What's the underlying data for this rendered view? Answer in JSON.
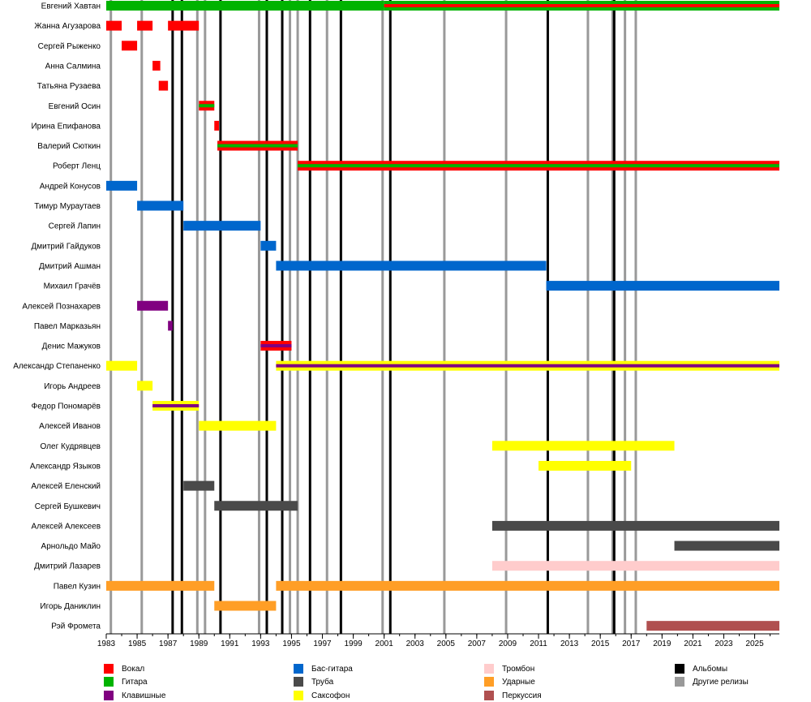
{
  "chart_data": {
    "type": "timeline",
    "title": "",
    "x_range": [
      1983,
      2026.6
    ],
    "ticks": [
      1983,
      1985,
      1987,
      1989,
      1991,
      1993,
      1995,
      1997,
      1999,
      2001,
      2003,
      2005,
      2007,
      2009,
      2011,
      2013,
      2015,
      2017,
      2019,
      2021,
      2023,
      2025
    ],
    "album_lines": [
      1987.3,
      1987.9,
      1990.4,
      1993.4,
      1994.4,
      1996.2,
      1998.2,
      2001.4,
      2011.6,
      2015.9
    ],
    "other_release_lines": [
      1983.3,
      1985.3,
      1988.9,
      1989.4,
      1992.9,
      1994.9,
      1995.4,
      1997.3,
      2000.9,
      2004.9,
      2008.9,
      2014.2,
      2015.8,
      2016.6,
      2017.3
    ],
    "legend": [
      {
        "key": "vocal",
        "label": "Вокал",
        "color": "#ff0000"
      },
      {
        "key": "guitar",
        "label": "Гитара",
        "color": "#00b300"
      },
      {
        "key": "keys",
        "label": "Клавишные",
        "color": "#800080"
      },
      {
        "key": "bass",
        "label": "Бас-гитара",
        "color": "#0066cc"
      },
      {
        "key": "trumpet",
        "label": "Труба",
        "color": "#4a4a4a"
      },
      {
        "key": "sax",
        "label": "Саксофон",
        "color": "#ffff00"
      },
      {
        "key": "trombone",
        "label": "Тромбон",
        "color": "#ffcccc"
      },
      {
        "key": "drums",
        "label": "Ударные",
        "color": "#ff9e26"
      },
      {
        "key": "percussion",
        "label": "Перкуссия",
        "color": "#b05050"
      },
      {
        "key": "albums",
        "label": "Альбомы",
        "color": "#000000"
      },
      {
        "key": "other",
        "label": "Другие релизы",
        "color": "#999999"
      }
    ],
    "members": [
      {
        "name": "Евгений Хавтан",
        "bars": [
          {
            "start": 1983,
            "end": 2001,
            "colors": [
              "guitar"
            ]
          },
          {
            "start": 2001,
            "end": 2026.6,
            "colors": [
              "guitar",
              "vocal"
            ]
          }
        ]
      },
      {
        "name": "Жанна Агузарова",
        "bars": [
          {
            "start": 1983,
            "end": 1984,
            "colors": [
              "vocal"
            ]
          },
          {
            "start": 1985,
            "end": 1986,
            "colors": [
              "vocal"
            ]
          },
          {
            "start": 1987,
            "end": 1989,
            "colors": [
              "vocal"
            ]
          }
        ]
      },
      {
        "name": "Сергей Рыженко",
        "bars": [
          {
            "start": 1984,
            "end": 1985,
            "colors": [
              "vocal"
            ]
          }
        ]
      },
      {
        "name": "Анна Салмина",
        "bars": [
          {
            "start": 1986,
            "end": 1986.5,
            "colors": [
              "vocal"
            ]
          }
        ]
      },
      {
        "name": "Татьяна Рузаева",
        "bars": [
          {
            "start": 1986.4,
            "end": 1987,
            "colors": [
              "vocal"
            ]
          }
        ]
      },
      {
        "name": "Евгений Осин",
        "bars": [
          {
            "start": 1989,
            "end": 1990,
            "colors": [
              "vocal",
              "guitar"
            ]
          }
        ]
      },
      {
        "name": "Ирина Епифанова",
        "bars": [
          {
            "start": 1990,
            "end": 1990.3,
            "colors": [
              "vocal"
            ]
          }
        ]
      },
      {
        "name": "Валерий Сюткин",
        "bars": [
          {
            "start": 1990.2,
            "end": 1995.4,
            "colors": [
              "vocal",
              "guitar"
            ]
          }
        ]
      },
      {
        "name": "Роберт Ленц",
        "bars": [
          {
            "start": 1995.4,
            "end": 2026.6,
            "colors": [
              "vocal",
              "guitar"
            ]
          }
        ]
      },
      {
        "name": "Андрей Конусов",
        "bars": [
          {
            "start": 1983,
            "end": 1985,
            "colors": [
              "bass"
            ]
          }
        ]
      },
      {
        "name": "Тимур Мураутаев",
        "bars": [
          {
            "start": 1985,
            "end": 1988,
            "colors": [
              "bass"
            ]
          }
        ]
      },
      {
        "name": "Сергей Лапин",
        "bars": [
          {
            "start": 1988,
            "end": 1993,
            "colors": [
              "bass"
            ]
          }
        ]
      },
      {
        "name": "Дмитрий Гайдуков",
        "bars": [
          {
            "start": 1993,
            "end": 1994,
            "colors": [
              "bass"
            ]
          }
        ]
      },
      {
        "name": "Дмитрий Ашман",
        "bars": [
          {
            "start": 1994,
            "end": 2011.5,
            "colors": [
              "bass"
            ]
          }
        ]
      },
      {
        "name": "Михаил Грачёв",
        "bars": [
          {
            "start": 2011.5,
            "end": 2026.6,
            "colors": [
              "bass"
            ]
          }
        ]
      },
      {
        "name": "Алексей Познахарев",
        "bars": [
          {
            "start": 1985,
            "end": 1987,
            "colors": [
              "keys"
            ]
          }
        ]
      },
      {
        "name": "Павел Марказьян",
        "bars": [
          {
            "start": 1987,
            "end": 1987.3,
            "colors": [
              "keys"
            ]
          }
        ]
      },
      {
        "name": "Денис Мажуков",
        "bars": [
          {
            "start": 1993,
            "end": 1995,
            "colors": [
              "vocal",
              "keys"
            ]
          }
        ]
      },
      {
        "name": "Александр Степаненко",
        "bars": [
          {
            "start": 1983,
            "end": 1985,
            "colors": [
              "sax"
            ]
          },
          {
            "start": 1994,
            "end": 2026.6,
            "colors": [
              "sax",
              "keys"
            ]
          }
        ]
      },
      {
        "name": "Игорь Андреев",
        "bars": [
          {
            "start": 1985,
            "end": 1986,
            "colors": [
              "sax"
            ]
          }
        ]
      },
      {
        "name": "Федор Пономарёв",
        "bars": [
          {
            "start": 1986,
            "end": 1989,
            "colors": [
              "sax",
              "keys"
            ]
          }
        ]
      },
      {
        "name": "Алексей Иванов",
        "bars": [
          {
            "start": 1989,
            "end": 1994,
            "colors": [
              "sax"
            ]
          }
        ]
      },
      {
        "name": "Олег Кудрявцев",
        "bars": [
          {
            "start": 2008,
            "end": 2019.8,
            "colors": [
              "sax"
            ]
          }
        ]
      },
      {
        "name": "Александр Языков",
        "bars": [
          {
            "start": 2011,
            "end": 2017,
            "colors": [
              "sax"
            ]
          }
        ]
      },
      {
        "name": "Алексей Еленский",
        "bars": [
          {
            "start": 1988,
            "end": 1990,
            "colors": [
              "trumpet"
            ]
          }
        ]
      },
      {
        "name": "Сергей Бушкевич",
        "bars": [
          {
            "start": 1990,
            "end": 1995.4,
            "colors": [
              "trumpet"
            ]
          }
        ]
      },
      {
        "name": "Алексей Алексеев",
        "bars": [
          {
            "start": 2008,
            "end": 2026.6,
            "colors": [
              "trumpet"
            ]
          }
        ]
      },
      {
        "name": "Арнольдо Майо",
        "bars": [
          {
            "start": 2019.8,
            "end": 2026.6,
            "colors": [
              "trumpet"
            ]
          }
        ]
      },
      {
        "name": "Дмитрий Лазарев",
        "bars": [
          {
            "start": 2008,
            "end": 2026.6,
            "colors": [
              "trombone"
            ]
          }
        ]
      },
      {
        "name": "Павел Кузин",
        "bars": [
          {
            "start": 1983,
            "end": 1990,
            "colors": [
              "drums"
            ]
          },
          {
            "start": 1994,
            "end": 2026.6,
            "colors": [
              "drums"
            ]
          }
        ]
      },
      {
        "name": "Игорь Даниклин",
        "bars": [
          {
            "start": 1990,
            "end": 1994,
            "colors": [
              "drums"
            ]
          }
        ]
      },
      {
        "name": "Рэй Фромета",
        "bars": [
          {
            "start": 2018,
            "end": 2026.6,
            "colors": [
              "percussion"
            ]
          }
        ]
      }
    ]
  }
}
